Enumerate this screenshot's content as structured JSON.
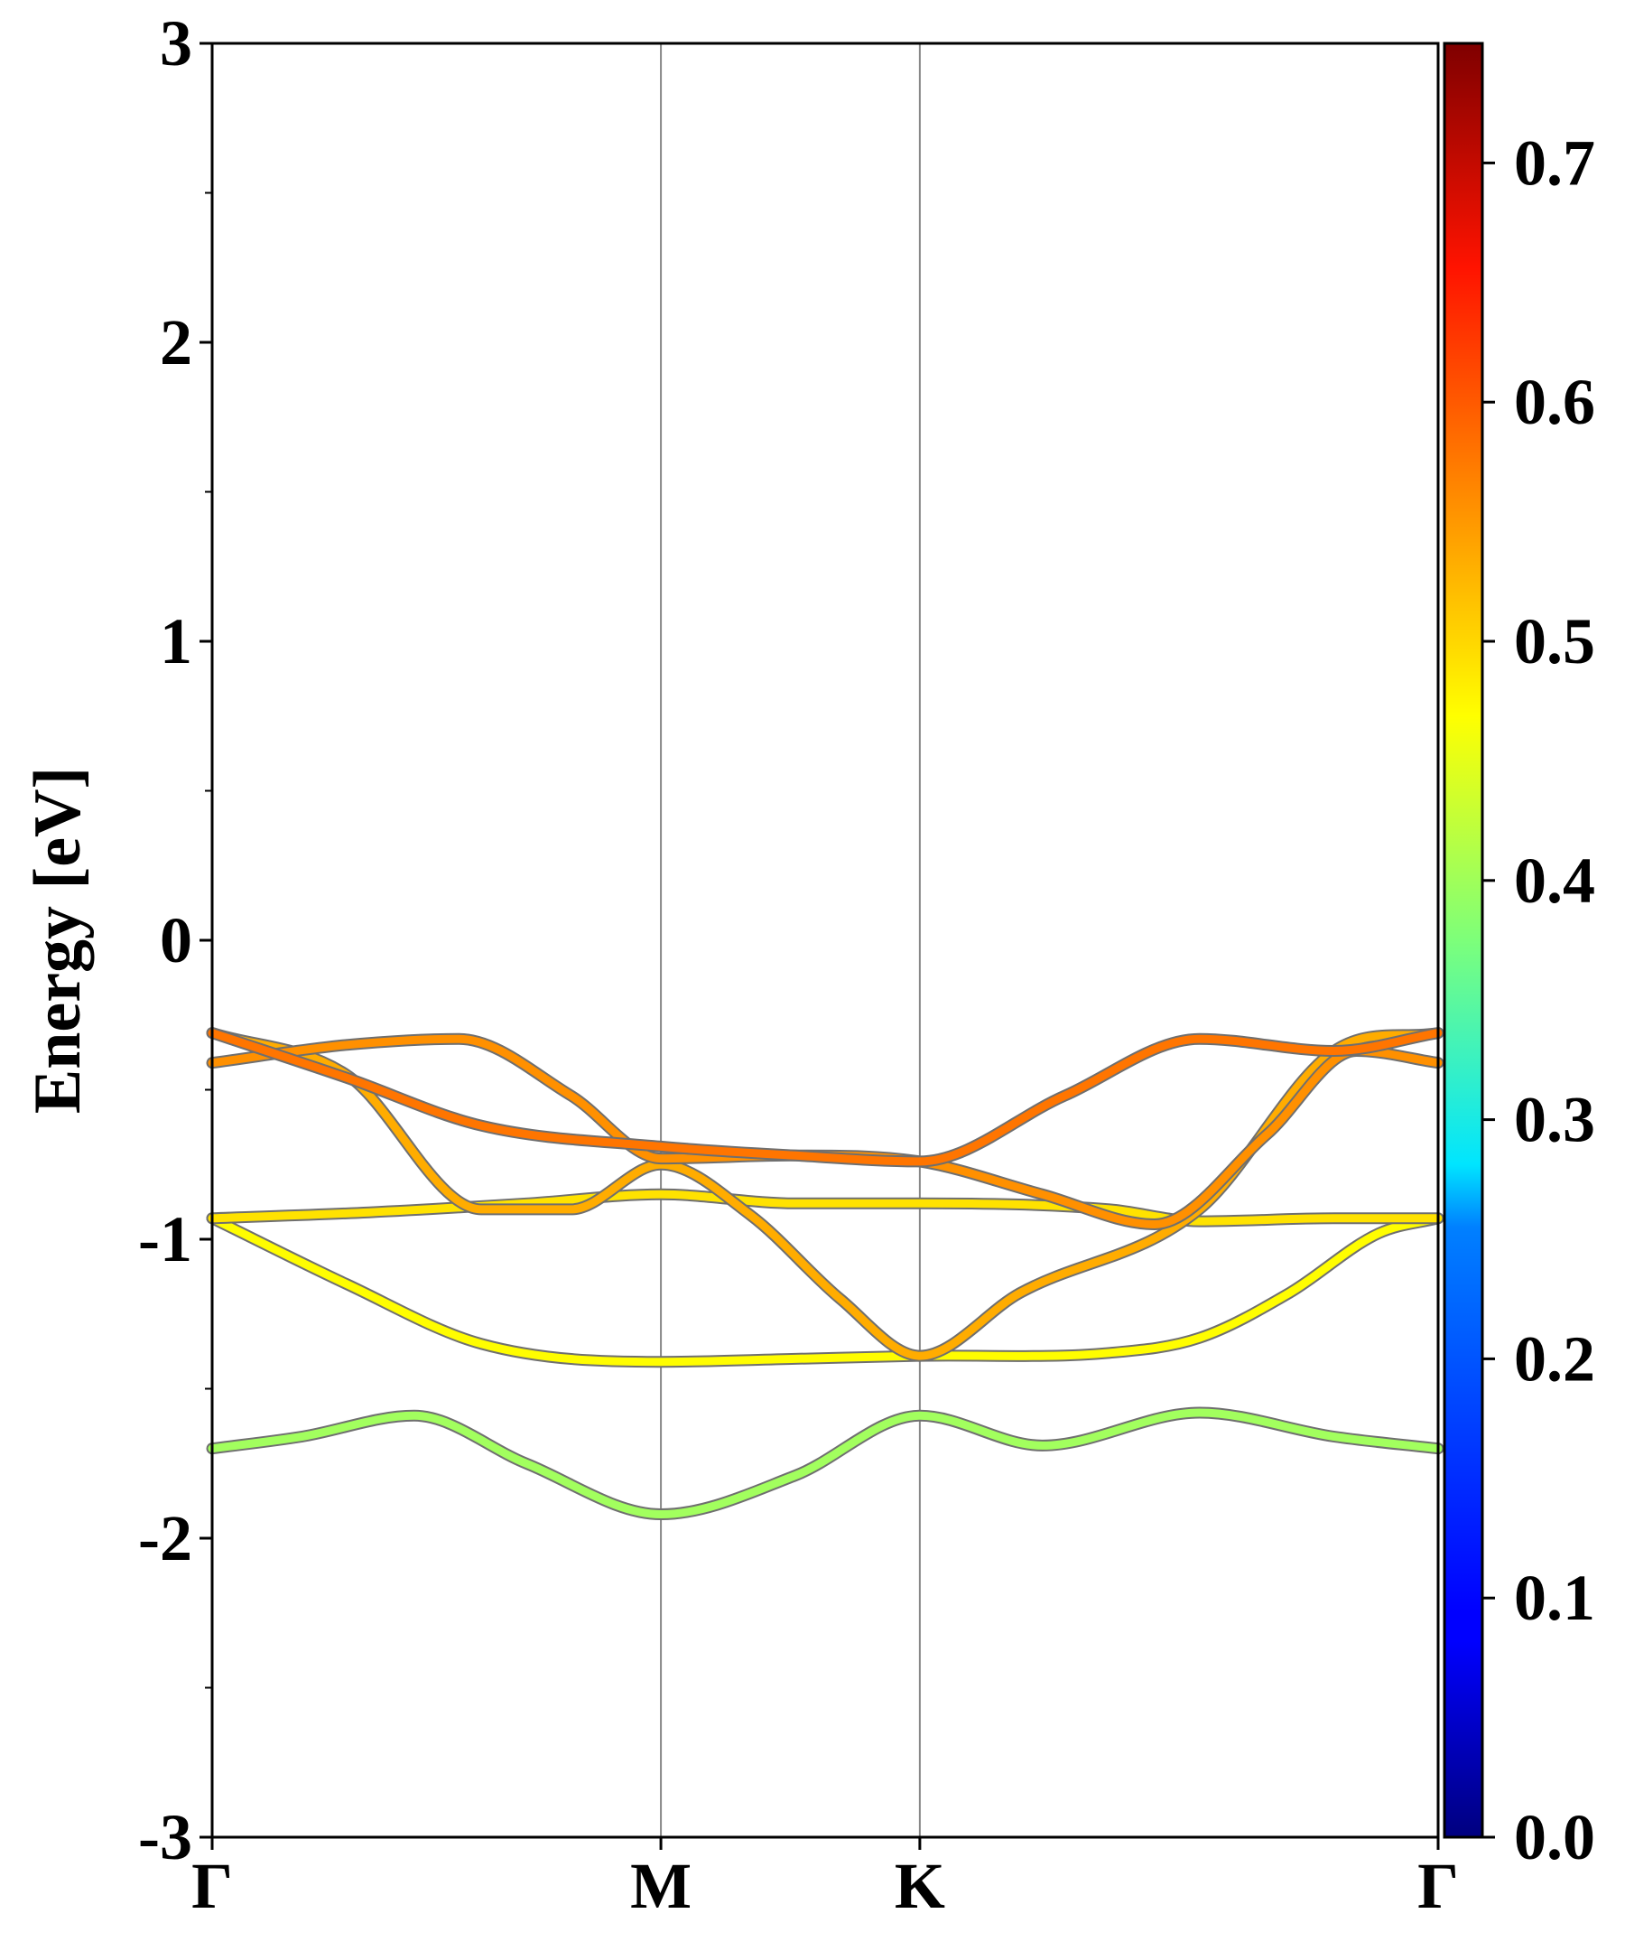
{
  "chart_data": {
    "type": "line",
    "title": "",
    "ylabel": "Energy [eV]",
    "xlabel": "",
    "ylim": [
      -3,
      3
    ],
    "xlim": [
      0,
      2.732
    ],
    "grid": false,
    "y_ticks": [
      -3,
      -2,
      -1,
      0,
      1,
      2,
      3
    ],
    "y_tick_labels": [
      "-3",
      "-2",
      "-1",
      "0",
      "1",
      "2",
      "3"
    ],
    "high_symmetry_points": [
      {
        "label": "Γ",
        "x": 0
      },
      {
        "label": "M",
        "x": 1.0
      },
      {
        "label": "K",
        "x": 1.577
      },
      {
        "label": "Γ",
        "x": 2.732
      }
    ],
    "colorbar": {
      "colormap": "jet",
      "range": [
        0.0,
        0.75
      ],
      "ticks": [
        0.0,
        0.1,
        0.2,
        0.3,
        0.4,
        0.5,
        0.6,
        0.7
      ],
      "tick_labels": [
        "0.0",
        "0.1",
        "0.2",
        "0.3",
        "0.4",
        "0.5",
        "0.6",
        "0.7"
      ]
    },
    "series": [
      {
        "color_value": 0.4,
        "x": [
          0,
          0.2,
          0.45,
          0.7,
          1.0,
          1.3,
          1.577,
          1.85,
          2.2,
          2.5,
          2.732
        ],
        "y": [
          -1.7,
          -1.66,
          -1.59,
          -1.75,
          -1.92,
          -1.79,
          -1.59,
          -1.69,
          -1.58,
          -1.66,
          -1.7
        ]
      },
      {
        "color_value": 0.47,
        "x": [
          0,
          0.3,
          0.6,
          1.0,
          1.3,
          1.577,
          2.0,
          2.2,
          2.4,
          2.6,
          2.732
        ],
        "y": [
          -0.93,
          -1.15,
          -1.35,
          -1.41,
          -1.4,
          -1.39,
          -1.38,
          -1.33,
          -1.18,
          -0.98,
          -0.93
        ]
      },
      {
        "color_value": 0.49,
        "x": [
          0,
          0.35,
          0.7,
          1.0,
          1.3,
          1.577,
          2.0,
          2.2,
          2.5,
          2.732
        ],
        "y": [
          -0.93,
          -0.91,
          -0.88,
          -0.85,
          -0.88,
          -0.88,
          -0.9,
          -0.94,
          -0.93,
          -0.93
        ]
      },
      {
        "color_value": 0.53,
        "x": [
          0,
          0.3,
          0.6,
          0.8,
          1.0,
          1.2,
          1.4,
          1.577,
          1.8,
          2.2,
          2.5,
          2.732
        ],
        "y": [
          -0.31,
          -0.45,
          -0.9,
          -0.9,
          -0.75,
          -0.92,
          -1.2,
          -1.39,
          -1.18,
          -0.9,
          -0.37,
          -0.31
        ]
      },
      {
        "color_value": 0.55,
        "x": [
          0,
          0.3,
          0.55,
          0.8,
          1.0,
          1.3,
          1.577,
          1.85,
          2.1,
          2.35,
          2.55,
          2.732
        ],
        "y": [
          -0.41,
          -0.35,
          -0.33,
          -0.52,
          -0.73,
          -0.72,
          -0.74,
          -0.85,
          -0.95,
          -0.65,
          -0.37,
          -0.41
        ]
      },
      {
        "color_value": 0.57,
        "x": [
          0,
          0.3,
          0.6,
          1.0,
          1.3,
          1.577,
          1.9,
          2.2,
          2.5,
          2.732
        ],
        "y": [
          -0.31,
          -0.46,
          -0.62,
          -0.69,
          -0.72,
          -0.74,
          -0.52,
          -0.33,
          -0.37,
          -0.31
        ]
      }
    ]
  }
}
